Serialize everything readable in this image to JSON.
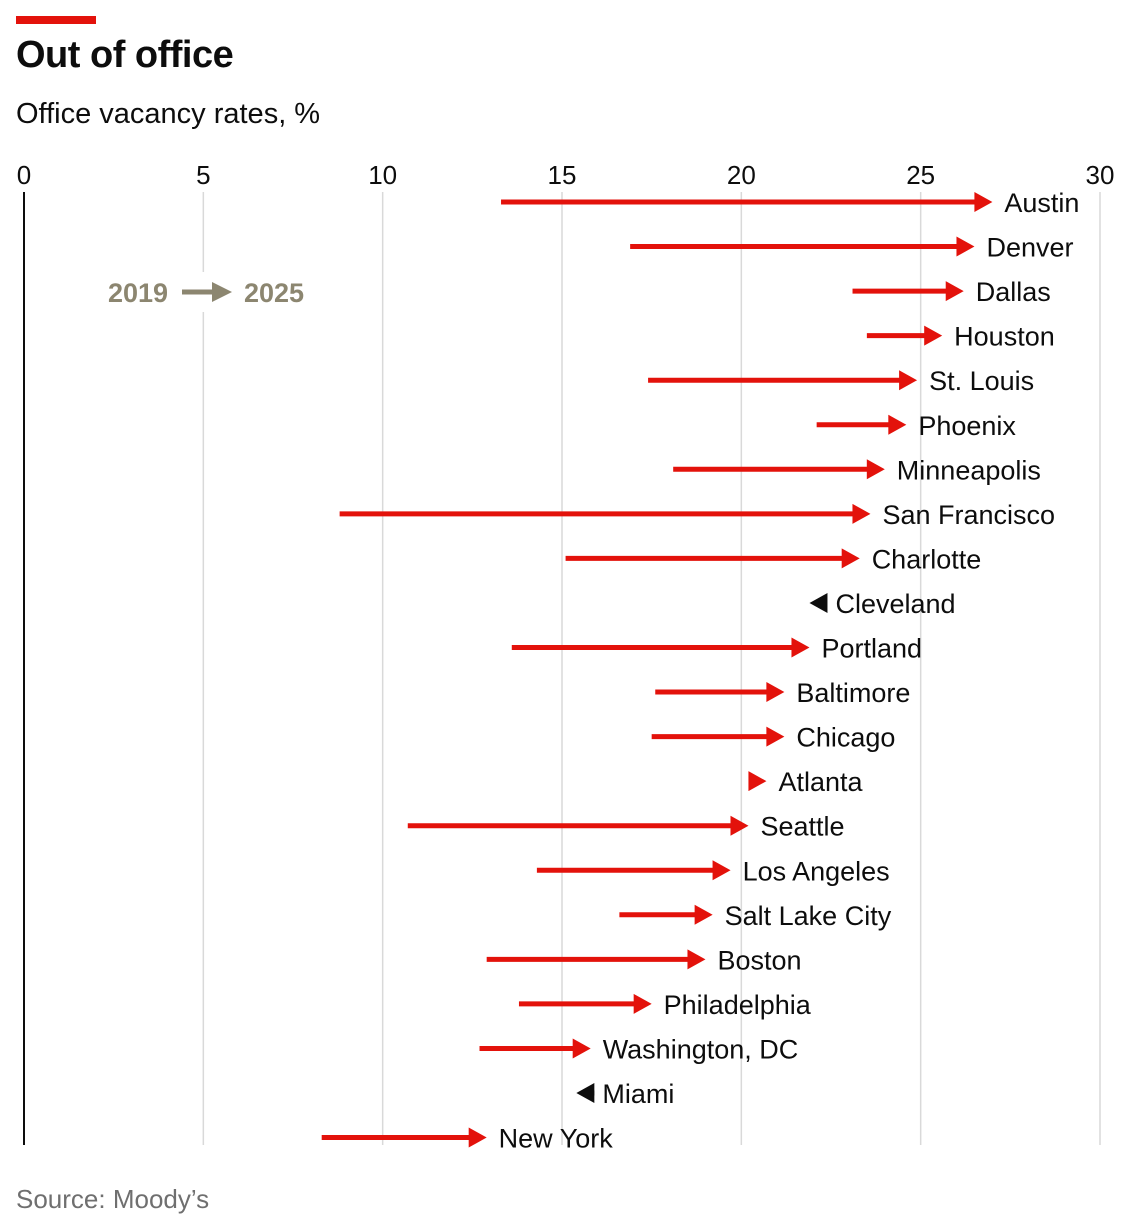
{
  "header": {
    "title": "Out of office",
    "subtitle": "Office vacancy rates, %",
    "accent_color": "#e3120b"
  },
  "legend": {
    "from_label": "2019",
    "to_label": "2025",
    "color": "#8c8670"
  },
  "footer": {
    "source": "Source: Moody’s"
  },
  "chart_data": {
    "type": "arrow",
    "title": "Out of office",
    "subtitle": "Office vacancy rates, %",
    "xlabel": "",
    "ylabel": "",
    "xlim": [
      0,
      30
    ],
    "xticks": [
      0,
      5,
      10,
      15,
      20,
      25,
      30
    ],
    "grid": true,
    "increase_color": "#e3120b",
    "decrease_color": "#0d0d0d",
    "series": [
      {
        "city": "Austin",
        "y2019": 13.3,
        "y2025": 27.0
      },
      {
        "city": "Denver",
        "y2019": 16.9,
        "y2025": 26.5
      },
      {
        "city": "Dallas",
        "y2019": 23.1,
        "y2025": 26.2
      },
      {
        "city": "Houston",
        "y2019": 23.5,
        "y2025": 25.6
      },
      {
        "city": "St. Louis",
        "y2019": 17.4,
        "y2025": 24.9
      },
      {
        "city": "Phoenix",
        "y2019": 22.1,
        "y2025": 24.6
      },
      {
        "city": "Minneapolis",
        "y2019": 18.1,
        "y2025": 24.0
      },
      {
        "city": "San Francisco",
        "y2019": 8.8,
        "y2025": 23.6
      },
      {
        "city": "Charlotte",
        "y2019": 15.1,
        "y2025": 23.3
      },
      {
        "city": "Cleveland",
        "y2019": 22.3,
        "y2025": 21.9
      },
      {
        "city": "Portland",
        "y2019": 13.6,
        "y2025": 21.9
      },
      {
        "city": "Baltimore",
        "y2019": 17.6,
        "y2025": 21.2
      },
      {
        "city": "Chicago",
        "y2019": 17.5,
        "y2025": 21.2
      },
      {
        "city": "Atlanta",
        "y2019": 20.2,
        "y2025": 20.7
      },
      {
        "city": "Seattle",
        "y2019": 10.7,
        "y2025": 20.2
      },
      {
        "city": "Los Angeles",
        "y2019": 14.3,
        "y2025": 19.7
      },
      {
        "city": "Salt Lake City",
        "y2019": 16.6,
        "y2025": 19.2
      },
      {
        "city": "Boston",
        "y2019": 12.9,
        "y2025": 19.0
      },
      {
        "city": "Philadelphia",
        "y2019": 13.8,
        "y2025": 17.5
      },
      {
        "city": "Washington, DC",
        "y2019": 12.7,
        "y2025": 15.8
      },
      {
        "city": "Miami",
        "y2019": 15.9,
        "y2025": 15.4
      },
      {
        "city": "New York",
        "y2019": 8.3,
        "y2025": 12.9
      }
    ]
  }
}
